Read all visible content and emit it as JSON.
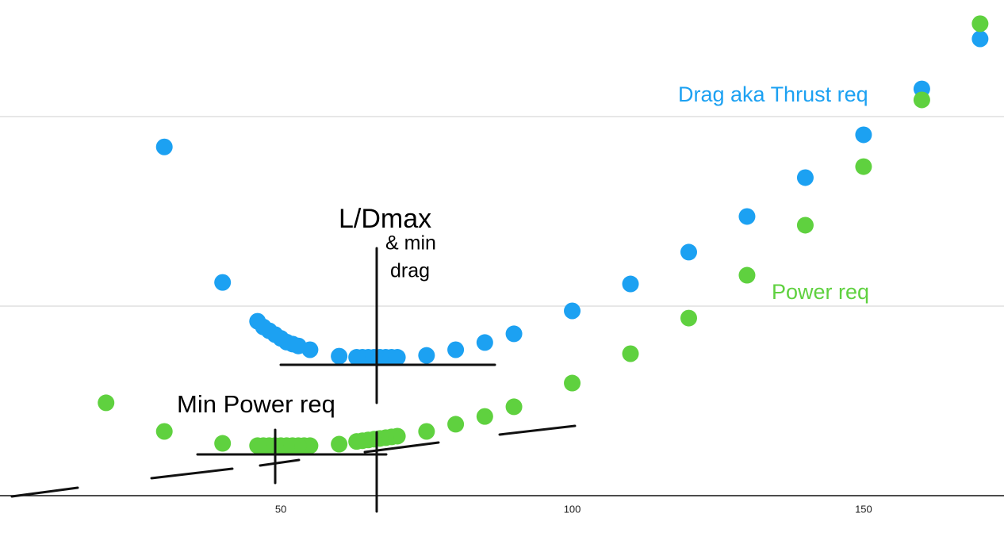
{
  "chart_data": {
    "type": "scatter",
    "xlim": [
      1.8,
      174.1
    ],
    "ylim": [
      -27.6,
      261.5
    ],
    "xticks": [
      50,
      100,
      150
    ],
    "yticks": [
      0,
      100,
      200
    ],
    "grid": true,
    "series": [
      {
        "name": "Drag aka Thrust req",
        "color": "#1ca1f2",
        "x": [
          30,
          40,
          46,
          47,
          48,
          49,
          50,
          51,
          52,
          53,
          55,
          60,
          63,
          64,
          65,
          66,
          67,
          68,
          69,
          70,
          75,
          80,
          85,
          90,
          100,
          110,
          120,
          130,
          140,
          150,
          160,
          170
        ],
        "values": [
          184,
          112.5,
          92,
          89,
          87,
          85,
          83,
          81,
          80,
          79,
          77,
          73.6,
          73,
          73,
          73,
          73,
          73,
          73,
          73,
          73,
          74,
          77,
          80.8,
          85.4,
          97.5,
          111.7,
          128.5,
          147.3,
          167.8,
          190.4,
          214.6,
          241
        ]
      },
      {
        "name": "Power req",
        "color": "#5fd13f",
        "x": [
          20,
          30,
          40,
          46,
          47,
          48,
          49,
          50,
          51,
          52,
          53,
          54,
          55,
          60,
          63,
          64,
          65,
          66,
          67,
          68,
          69,
          70,
          75,
          80,
          85,
          90,
          100,
          110,
          120,
          130,
          140,
          150,
          160,
          170
        ],
        "values": [
          49,
          33.9,
          27.6,
          26.4,
          26.4,
          26.4,
          26.4,
          26.4,
          26.4,
          26.4,
          26.4,
          26.4,
          26.4,
          27.2,
          28.6,
          29,
          29.4,
          29.8,
          30.2,
          30.6,
          31,
          31.4,
          33.9,
          37.7,
          41.8,
          46.9,
          59.4,
          74.9,
          93.7,
          116.3,
          142.7,
          173.6,
          208.8,
          249
        ]
      }
    ],
    "annotations": [
      "L/Dmax",
      "& min",
      "drag",
      "Min Power req"
    ]
  }
}
